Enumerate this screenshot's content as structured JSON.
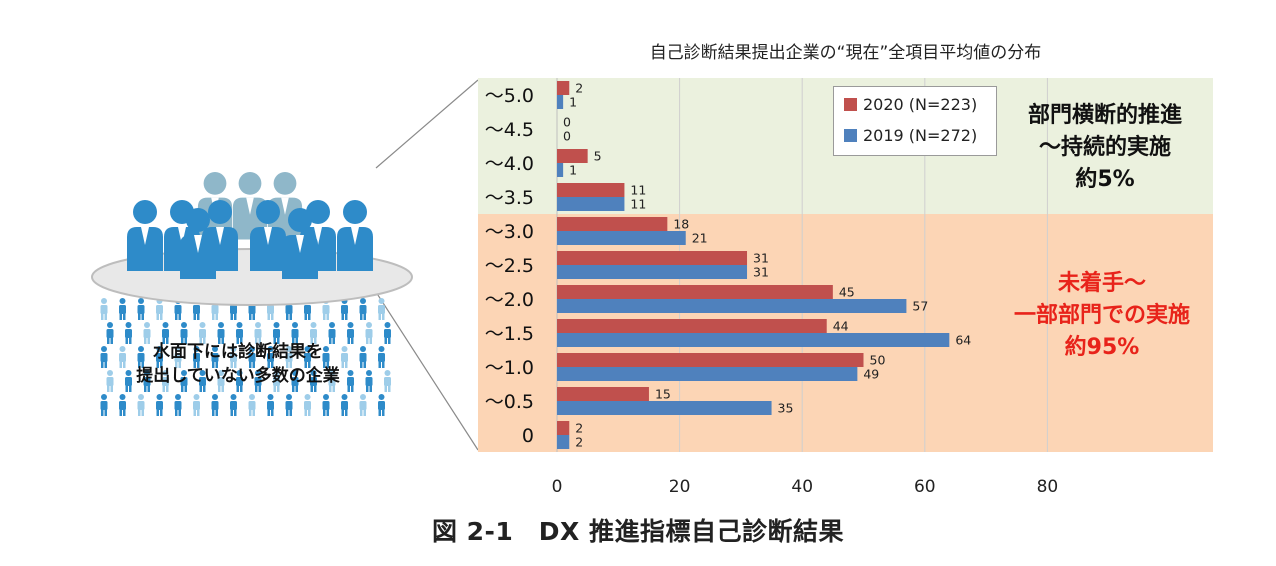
{
  "figure_caption": "図 2-1　DX 推進指標自己診断結果",
  "iceberg_label": "水面下には診断結果を\n提出していない多数の企業",
  "upper_region_label": "部門横断的推進\n～持続的実施\n約5%",
  "lower_region_label": "未着手～\n一部部門での実施\n約95%",
  "colors": {
    "series_2020": "#c0504d",
    "series_2019": "#4f81bd",
    "upper_region": "#ebf1de",
    "lower_region": "#fcd5b5",
    "people": "#2e8bc9",
    "people_back": "#8fb7c9"
  },
  "chart_data": {
    "type": "bar",
    "orientation": "horizontal",
    "title": "自己診断結果提出企業の“現在”全項目平均値の分布",
    "categories": [
      "～5.0",
      "～4.5",
      "～4.0",
      "～3.5",
      "～3.0",
      "～2.5",
      "～2.0",
      "～1.5",
      "～1.0",
      "～0.5",
      "0"
    ],
    "series": [
      {
        "name": "2020 (N=223)",
        "values": [
          2,
          0,
          5,
          11,
          18,
          31,
          45,
          44,
          50,
          15,
          2
        ]
      },
      {
        "name": "2019 (N=272)",
        "values": [
          1,
          0,
          1,
          11,
          21,
          31,
          57,
          64,
          49,
          35,
          2
        ]
      }
    ],
    "xticks": [
      "0",
      "20",
      "40",
      "60",
      "80"
    ],
    "xlim": [
      0,
      107
    ],
    "grid": true,
    "legend_position": "top-right",
    "upper_region_categories": [
      "～5.0",
      "～4.5",
      "～4.0",
      "～3.5"
    ],
    "lower_region_categories": [
      "～3.0",
      "～2.5",
      "～2.0",
      "～1.5",
      "～1.0",
      "～0.5",
      "0"
    ]
  }
}
